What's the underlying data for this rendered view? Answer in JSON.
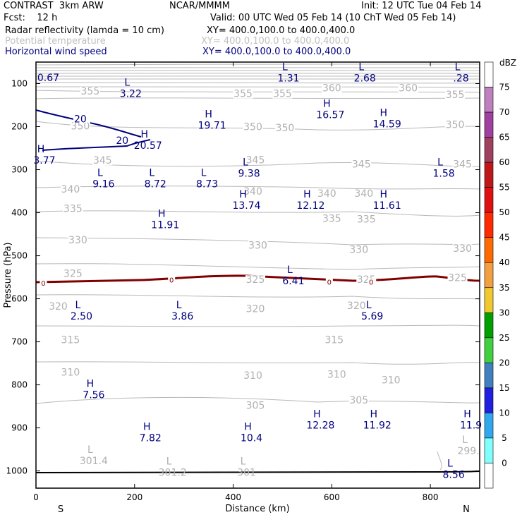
{
  "header": {
    "model": "CONTRAST  3km ARW",
    "org": "NCAR/MMMM",
    "init": "Init: 12 UTC Tue 04 Feb 14",
    "fcst": "Fcst:    12 h",
    "valid": "Valid: 00 UTC Wed 05 Feb 14 (10 ChT Wed 05 Feb 14)"
  },
  "fields": [
    {
      "label": "Radar reflectivity (lamda = 10 cm)",
      "xy": "XY= 400.0,100.0 to 400.0,400.0",
      "color": "#000000"
    },
    {
      "label": "Potential temperature",
      "xy": "XY= 400.0,100.0 to 400.0,400.0",
      "color": "#c0c0c0"
    },
    {
      "label": "Horizontal wind speed",
      "xy": "XY= 400.0,100.0 to 400.0,400.0",
      "color": "#000080"
    }
  ],
  "chart_data": {
    "type": "cross-section",
    "xlabel": "Distance (km)",
    "ylabel": "Pressure (hPa)",
    "xlim": [
      0,
      900
    ],
    "ylim": [
      1040,
      50
    ],
    "x_ticks": [
      0,
      200,
      400,
      600,
      800
    ],
    "y_ticks": [
      100,
      200,
      300,
      400,
      500,
      600,
      700,
      800,
      900,
      1000
    ],
    "x_end_labels": {
      "left": "S",
      "right": "N"
    },
    "colorbar": {
      "unit": "dBZ",
      "levels": [
        75,
        70,
        65,
        60,
        55,
        50,
        45,
        40,
        35,
        30,
        25,
        20,
        15,
        10,
        5,
        0
      ],
      "colors": [
        "#ffffff",
        "#c080c0",
        "#a040a0",
        "#a04060",
        "#c01818",
        "#e01010",
        "#ff2a00",
        "#ff6a00",
        "#f5a040",
        "#f0c830",
        "#00a000",
        "#40d040",
        "#4080c0",
        "#2020e0",
        "#30a8f0",
        "#80ffff",
        "#ffffff"
      ]
    },
    "theta_contours": [
      {
        "value": 355,
        "labels": [
          {
            "x": 110,
            "p": 122
          },
          {
            "x": 420,
            "p": 128
          },
          {
            "x": 500,
            "p": 128
          },
          {
            "x": 850,
            "p": 130
          }
        ]
      },
      {
        "value": 360,
        "labels": [
          {
            "x": 600,
            "p": 115
          },
          {
            "x": 755,
            "p": 115
          }
        ]
      },
      {
        "value": 350,
        "labels": [
          {
            "x": 90,
            "p": 203
          },
          {
            "x": 440,
            "p": 205
          },
          {
            "x": 505,
            "p": 207
          },
          {
            "x": 850,
            "p": 200
          }
        ]
      },
      {
        "value": 345,
        "labels": [
          {
            "x": 135,
            "p": 283
          },
          {
            "x": 445,
            "p": 282
          },
          {
            "x": 660,
            "p": 292
          },
          {
            "x": 865,
            "p": 292
          }
        ]
      },
      {
        "value": 340,
        "labels": [
          {
            "x": 70,
            "p": 350
          },
          {
            "x": 440,
            "p": 355
          },
          {
            "x": 590,
            "p": 360
          },
          {
            "x": 665,
            "p": 360
          }
        ]
      },
      {
        "value": 335,
        "labels": [
          {
            "x": 75,
            "p": 395
          },
          {
            "x": 600,
            "p": 418
          },
          {
            "x": 670,
            "p": 420
          }
        ]
      },
      {
        "value": 330,
        "labels": [
          {
            "x": 85,
            "p": 468
          },
          {
            "x": 450,
            "p": 480
          },
          {
            "x": 655,
            "p": 490
          },
          {
            "x": 865,
            "p": 488
          }
        ]
      },
      {
        "value": 325,
        "labels": [
          {
            "x": 75,
            "p": 546
          },
          {
            "x": 445,
            "p": 560
          },
          {
            "x": 670,
            "p": 560
          },
          {
            "x": 855,
            "p": 556
          }
        ]
      },
      {
        "value": 320,
        "labels": [
          {
            "x": 45,
            "p": 622
          },
          {
            "x": 445,
            "p": 628
          },
          {
            "x": 650,
            "p": 620
          }
        ]
      },
      {
        "value": 315,
        "labels": [
          {
            "x": 70,
            "p": 700
          },
          {
            "x": 605,
            "p": 700
          }
        ]
      },
      {
        "value": 310,
        "labels": [
          {
            "x": 70,
            "p": 775
          },
          {
            "x": 440,
            "p": 783
          },
          {
            "x": 610,
            "p": 780
          },
          {
            "x": 720,
            "p": 793
          }
        ]
      },
      {
        "value": 305,
        "labels": [
          {
            "x": 445,
            "p": 852
          },
          {
            "x": 655,
            "p": 840
          }
        ]
      }
    ],
    "wind_contours": [
      {
        "value": 20,
        "labels": [
          {
            "x": 90,
            "p": 185
          },
          {
            "x": 175,
            "p": 235
          }
        ]
      }
    ],
    "dbz_contours": [
      {
        "value": 0,
        "labels": [
          {
            "x": 15,
            "p": 565
          },
          {
            "x": 275,
            "p": 557
          },
          {
            "x": 595,
            "p": 562
          },
          {
            "x": 680,
            "p": 562
          }
        ]
      }
    ],
    "theta_extrema": [
      {
        "type": "L",
        "value": "301.4",
        "x": 110,
        "p": 958
      },
      {
        "type": "L",
        "value": "301.2",
        "x": 270,
        "p": 985
      },
      {
        "type": "L",
        "value": "301",
        "x": 420,
        "p": 985
      },
      {
        "type": "L",
        "value": "299.",
        "x": 870,
        "p": 935
      }
    ],
    "wind_extrema": [
      {
        "type": "",
        "value": "0.67",
        "x": 25,
        "p": 68
      },
      {
        "type": "L",
        "value": "3.22",
        "x": 185,
        "p": 105
      },
      {
        "type": "L",
        "value": "1.31",
        "x": 505,
        "p": 69
      },
      {
        "type": "L",
        "value": "2.68",
        "x": 660,
        "p": 69
      },
      {
        "type": "L",
        "value": ".28",
        "x": 855,
        "p": 69
      },
      {
        "type": "H",
        "value": "16.57",
        "x": 590,
        "p": 154
      },
      {
        "type": "H",
        "value": "14.59",
        "x": 705,
        "p": 175
      },
      {
        "type": "H",
        "value": "19.71",
        "x": 350,
        "p": 179
      },
      {
        "type": "H",
        "value": "20.57",
        "x": 220,
        "p": 225
      },
      {
        "type": "H",
        "value": "3.77",
        "x": 10,
        "p": 260
      },
      {
        "type": "L",
        "value": "9.16",
        "x": 130,
        "p": 315
      },
      {
        "type": "L",
        "value": "8.72",
        "x": 235,
        "p": 315
      },
      {
        "type": "L",
        "value": "8.73",
        "x": 340,
        "p": 315
      },
      {
        "type": "L",
        "value": "9.38",
        "x": 425,
        "p": 290
      },
      {
        "type": "L",
        "value": "1.58",
        "x": 820,
        "p": 290
      },
      {
        "type": "H",
        "value": "13.74",
        "x": 420,
        "p": 365
      },
      {
        "type": "H",
        "value": "12.12",
        "x": 550,
        "p": 365
      },
      {
        "type": "H",
        "value": "11.61",
        "x": 705,
        "p": 365
      },
      {
        "type": "H",
        "value": "11.91",
        "x": 255,
        "p": 410
      },
      {
        "type": "L",
        "value": "6.41",
        "x": 515,
        "p": 540
      },
      {
        "type": "L",
        "value": "2.50",
        "x": 85,
        "p": 622
      },
      {
        "type": "L",
        "value": "3.86",
        "x": 290,
        "p": 622
      },
      {
        "type": "L",
        "value": "5.69",
        "x": 675,
        "p": 622
      },
      {
        "type": "H",
        "value": "7.56",
        "x": 110,
        "p": 805
      },
      {
        "type": "H",
        "value": "12.28",
        "x": 570,
        "p": 875
      },
      {
        "type": "H",
        "value": "11.92",
        "x": 685,
        "p": 875
      },
      {
        "type": "H",
        "value": "11.9",
        "x": 875,
        "p": 875
      },
      {
        "type": "H",
        "value": "7.82",
        "x": 225,
        "p": 905
      },
      {
        "type": "H",
        "value": "10.4",
        "x": 430,
        "p": 905
      },
      {
        "type": "L",
        "value": "8.56",
        "x": 840,
        "p": 990
      }
    ]
  }
}
